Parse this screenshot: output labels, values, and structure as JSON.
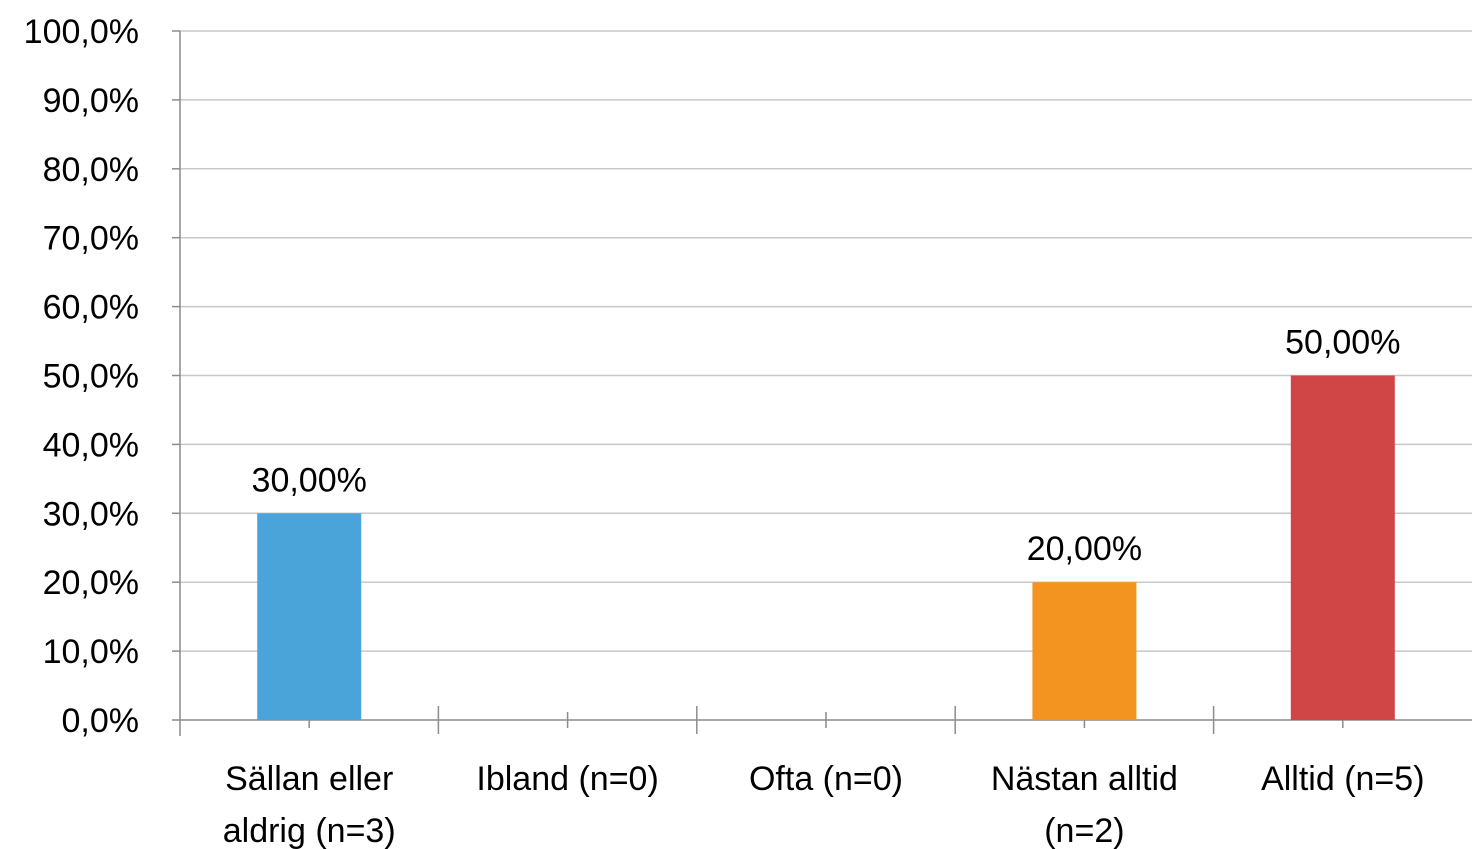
{
  "chart_data": {
    "type": "bar",
    "title": "",
    "xlabel": "",
    "ylabel": "",
    "categories": [
      [
        "Sällan eller",
        "aldrig (n=3)"
      ],
      [
        "Ibland (n=0)"
      ],
      [
        "Ofta (n=0)"
      ],
      [
        "Nästan alltid",
        "(n=2)"
      ],
      [
        "Alltid (n=5)"
      ]
    ],
    "values": [
      30,
      0,
      0,
      20,
      50
    ],
    "data_labels": [
      "30,00%",
      "",
      "",
      "20,00%",
      "50,00%"
    ],
    "bar_colors": [
      "#4aa4da",
      "#4aa4da",
      "#4aa4da",
      "#f39420",
      "#d04545"
    ],
    "ylim": [
      0,
      100
    ],
    "y_ticks": [
      0,
      10,
      20,
      30,
      40,
      50,
      60,
      70,
      80,
      90,
      100
    ],
    "y_tick_labels": [
      "0,0%",
      "10,0%",
      "20,0%",
      "30,0%",
      "40,0%",
      "50,0%",
      "60,0%",
      "70,0%",
      "80,0%",
      "90,0%",
      "100,0%"
    ],
    "grid": true,
    "legend": "none"
  }
}
